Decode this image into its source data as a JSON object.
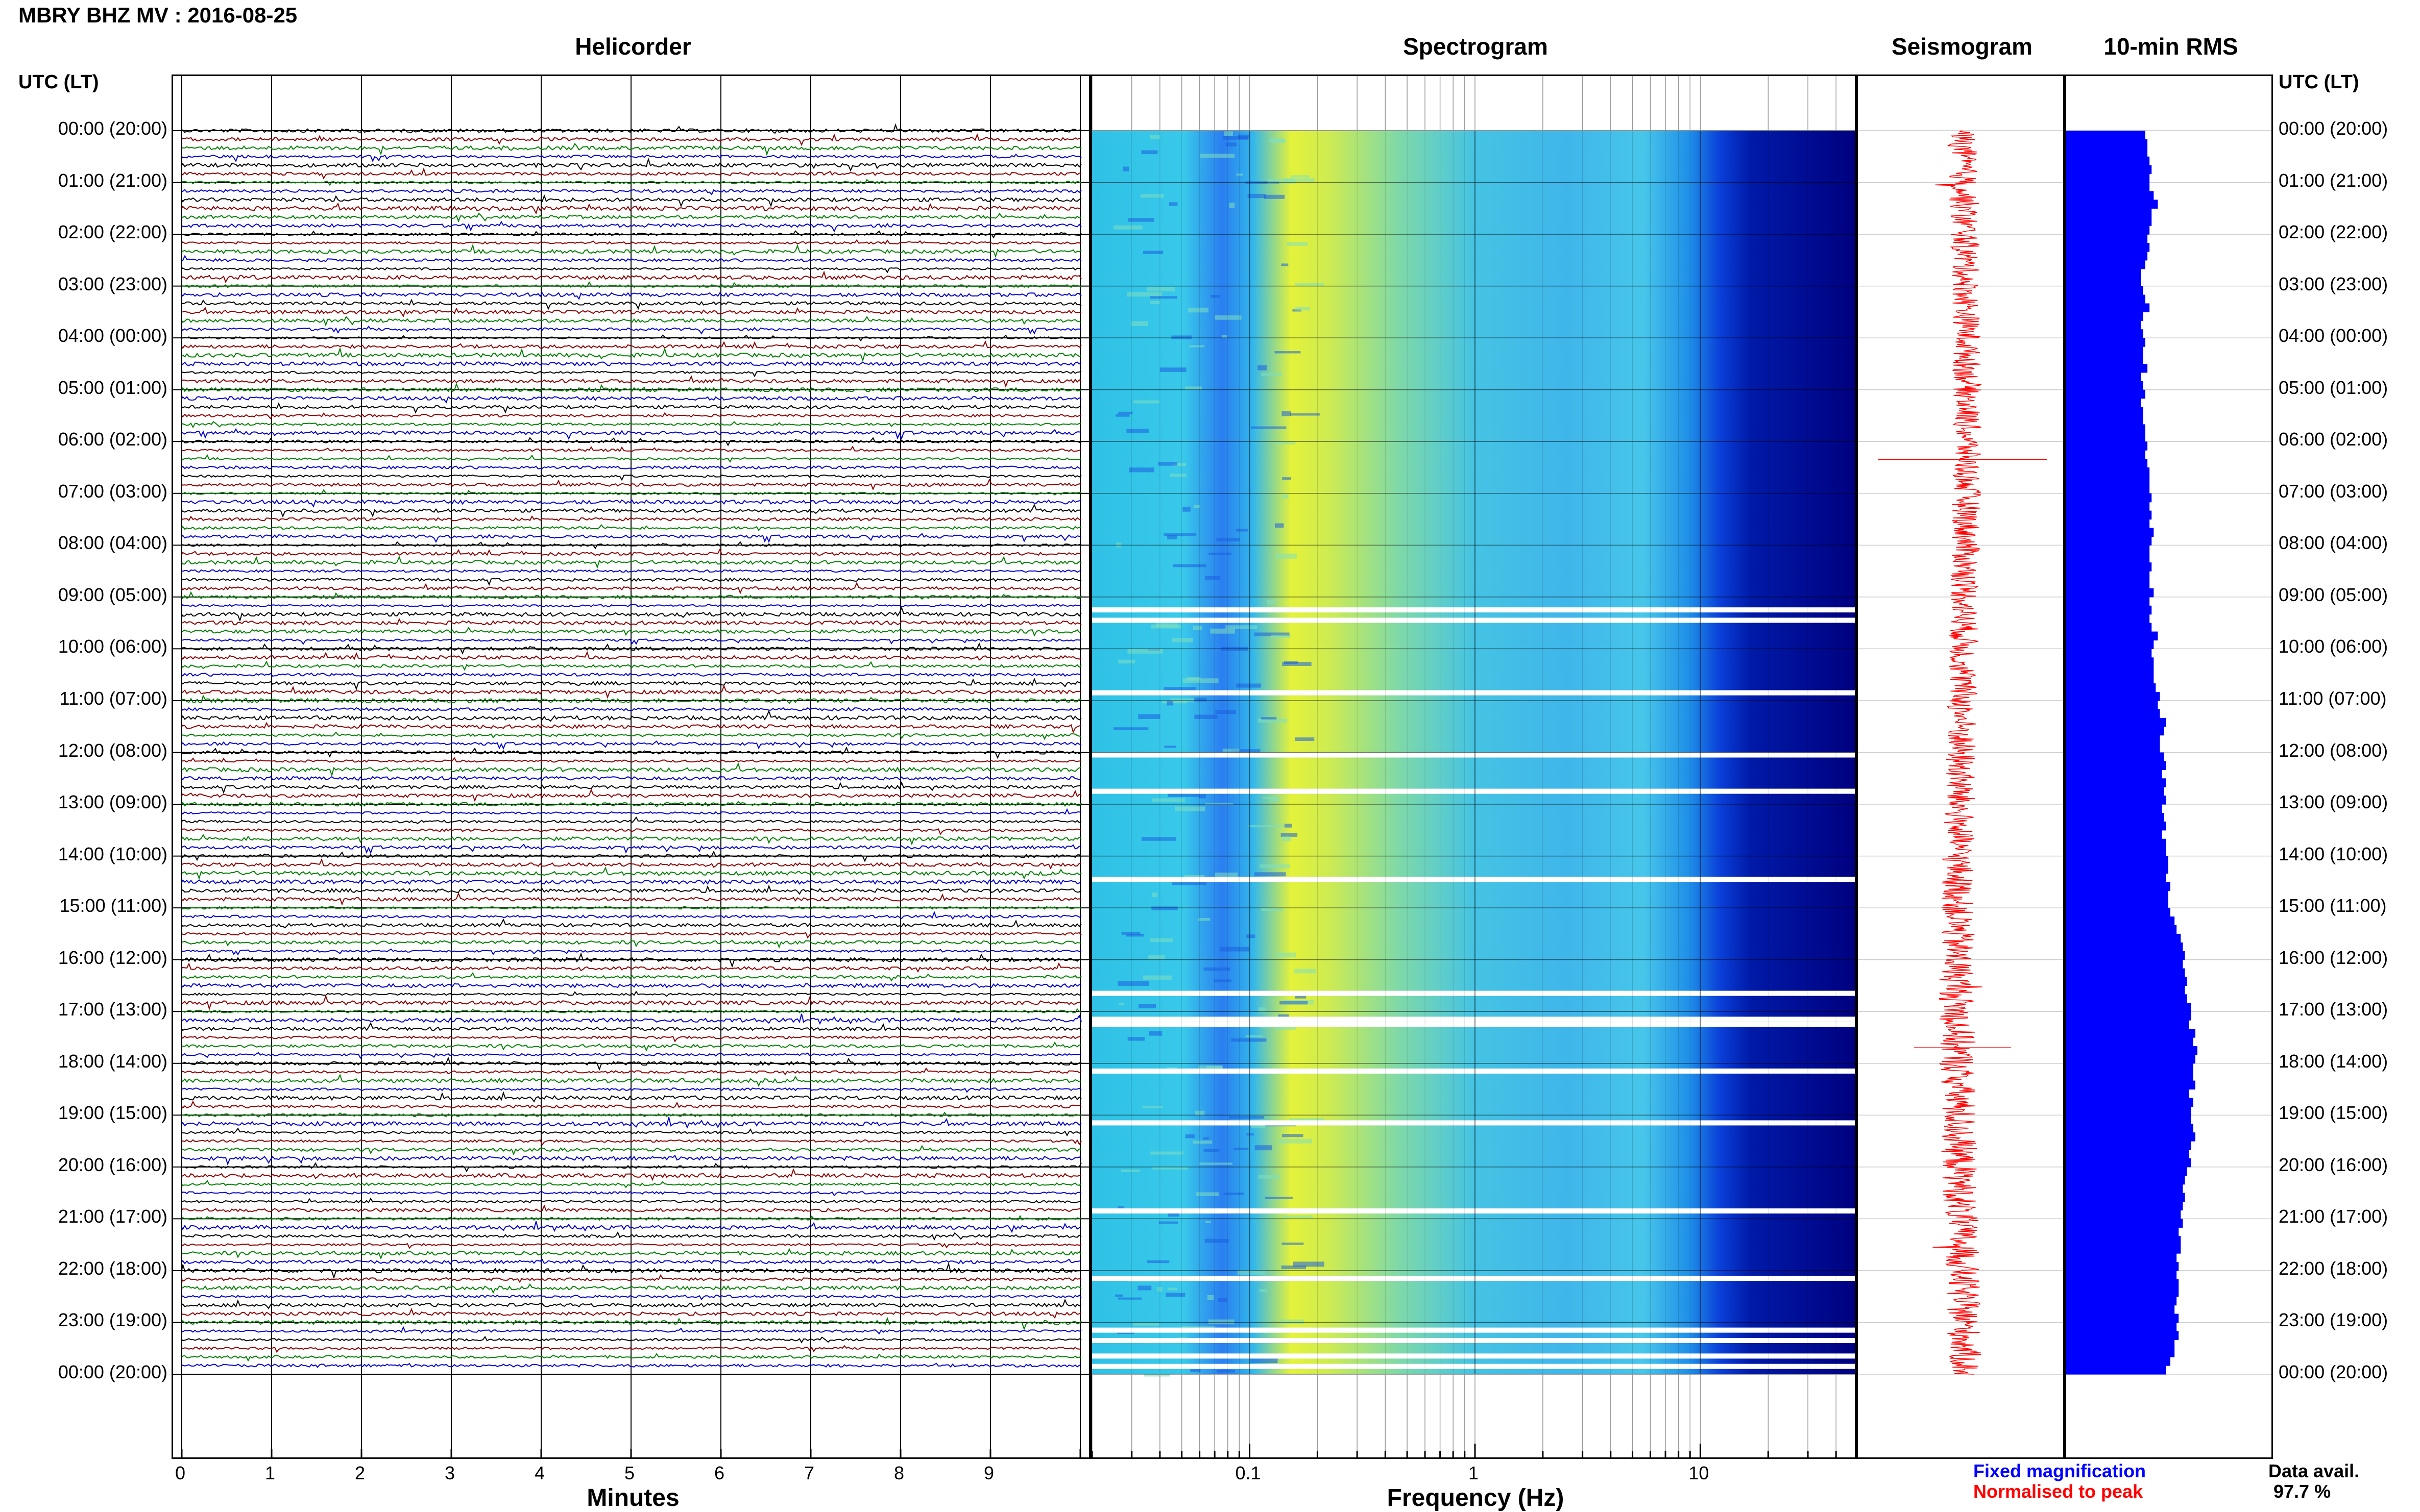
{
  "header": {
    "title": "MBRY BHZ MV : 2016-08-25",
    "panels": [
      "Helicorder",
      "Spectrogram",
      "Seismogram",
      "10-min RMS"
    ],
    "utc_label_left": "UTC (LT)",
    "utc_label_right": "UTC (LT)"
  },
  "time_labels": [
    "00:00 (20:00)",
    "01:00 (21:00)",
    "02:00 (22:00)",
    "03:00 (23:00)",
    "04:00 (00:00)",
    "05:00 (01:00)",
    "06:00 (02:00)",
    "07:00 (03:00)",
    "08:00 (04:00)",
    "09:00 (05:00)",
    "10:00 (06:00)",
    "11:00 (07:00)",
    "12:00 (08:00)",
    "13:00 (09:00)",
    "14:00 (10:00)",
    "15:00 (11:00)",
    "16:00 (12:00)",
    "17:00 (13:00)",
    "18:00 (14:00)",
    "19:00 (15:00)",
    "20:00 (16:00)",
    "21:00 (17:00)",
    "22:00 (18:00)",
    "23:00 (19:00)",
    "00:00 (20:00)"
  ],
  "helicorder": {
    "minute_ticks": [
      "0",
      "1",
      "2",
      "3",
      "4",
      "5",
      "6",
      "7",
      "8",
      "9"
    ],
    "xlabel": "Minutes",
    "trace_colors": [
      "#000000",
      "#8b0000",
      "#008000",
      "#0000cd"
    ]
  },
  "spectrogram": {
    "freq_ticks": [
      "0.1",
      "1",
      "10"
    ],
    "xlabel": "Frequency (Hz)"
  },
  "legend": {
    "fixed": "Fixed magnification",
    "normalised": "Normalised to peak",
    "fixed_color": "#0000ff",
    "normalised_color": "#ff0000"
  },
  "data_availability": {
    "label": "Data avail.",
    "value": "97.7 %"
  },
  "chart_data": [
    {
      "type": "line",
      "title": "Helicorder",
      "xlabel": "Minutes",
      "xlim": [
        0,
        10
      ],
      "rows": 144,
      "row_minutes": 10,
      "series_colors_cycle": [
        "black",
        "darkred",
        "green",
        "blue"
      ]
    },
    {
      "type": "heatmap",
      "title": "Spectrogram",
      "xlabel": "Frequency (Hz)",
      "x_scale": "log",
      "xlim": [
        0.02,
        50
      ],
      "colormap": "jet",
      "data_gap_hours": [
        9.2,
        9.4,
        10.8,
        12.0,
        12.7,
        14.4,
        16.6,
        17.1,
        17.2,
        18.1,
        19.1,
        20.8,
        22.1,
        23.1,
        23.3,
        23.6,
        23.8
      ]
    },
    {
      "type": "line",
      "title": "Seismogram",
      "color": "red"
    },
    {
      "type": "bar",
      "title": "10-min RMS",
      "orientation": "horizontal",
      "color": "blue",
      "values": [
        0.38,
        0.39,
        0.39,
        0.4,
        0.41,
        0.4,
        0.4,
        0.42,
        0.44,
        0.41,
        0.41,
        0.4,
        0.39,
        0.4,
        0.39,
        0.38,
        0.36,
        0.36,
        0.37,
        0.38,
        0.4,
        0.37,
        0.36,
        0.37,
        0.38,
        0.37,
        0.37,
        0.39,
        0.36,
        0.37,
        0.38,
        0.36,
        0.37,
        0.37,
        0.38,
        0.38,
        0.39,
        0.38,
        0.39,
        0.4,
        0.4,
        0.4,
        0.41,
        0.4,
        0.41,
        0.4,
        0.42,
        0.41,
        0.4,
        0.4,
        0.41,
        0.4,
        0.4,
        0.42,
        0.4,
        0.41,
        0.4,
        0.41,
        0.44,
        0.42,
        0.41,
        0.42,
        0.42,
        0.42,
        0.43,
        0.45,
        0.44,
        0.45,
        0.48,
        0.47,
        0.45,
        0.45,
        0.47,
        0.48,
        0.46,
        0.48,
        0.47,
        0.48,
        0.46,
        0.47,
        0.48,
        0.46,
        0.48,
        0.48,
        0.49,
        0.49,
        0.48,
        0.5,
        0.49,
        0.49,
        0.5,
        0.52,
        0.53,
        0.55,
        0.56,
        0.57,
        0.56,
        0.57,
        0.58,
        0.57,
        0.58,
        0.6,
        0.6,
        0.59,
        0.62,
        0.61,
        0.63,
        0.62,
        0.61,
        0.61,
        0.62,
        0.59,
        0.61,
        0.6,
        0.6,
        0.61,
        0.62,
        0.6,
        0.59,
        0.6,
        0.58,
        0.57,
        0.56,
        0.57,
        0.56,
        0.55,
        0.56,
        0.54,
        0.55,
        0.55,
        0.53,
        0.54,
        0.53,
        0.54,
        0.54,
        0.53,
        0.52,
        0.54,
        0.53,
        0.54,
        0.52,
        0.52,
        0.5,
        0.48
      ]
    }
  ]
}
